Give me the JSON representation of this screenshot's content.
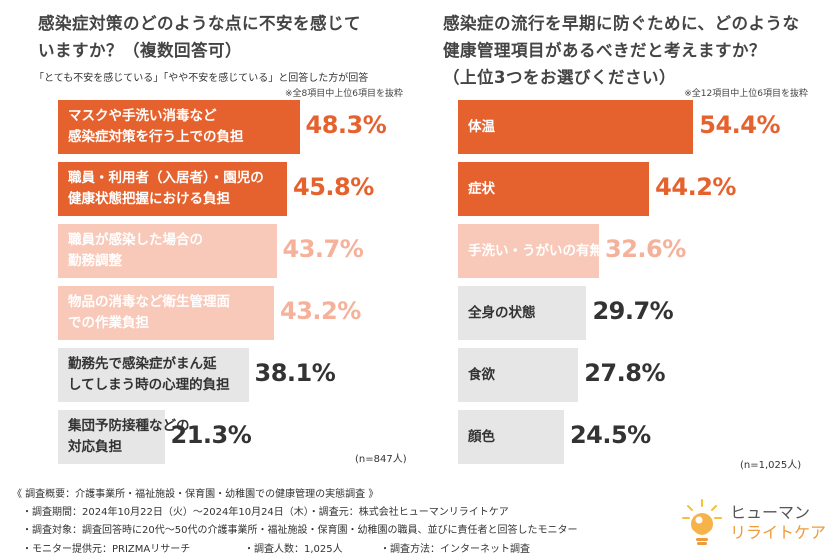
{
  "colors": {
    "dark_orange": "#e5622e",
    "light_orange": "#f5b19a",
    "pale_orange": "#f8c9b8",
    "gray": "#e6e6e6",
    "dark_text": "#333333",
    "logo_orange": "#f19a3a"
  },
  "left": {
    "title_line1": "感染症対策のどのような点に不安を感じて",
    "title_line2": "いますか？（複数回答可）",
    "subtitle": "「とても不安を感じている」「やや不安を感じている」と回答した方が回答",
    "note": "※全8項目中上位6項目を抜粋",
    "n": "(n=847人)"
  },
  "right": {
    "title_line1": "感染症の流行を早期に防ぐために、どのような",
    "title_line2": "健康管理項目があるべきだと考えますか？",
    "title_line3": "（上位3つをお選びください）",
    "note": "※全12項目中上位6項目を抜粋",
    "n": "(n=1,025人)"
  },
  "chart_data": [
    {
      "type": "bar",
      "orientation": "horizontal",
      "title": "感染症対策のどのような点に不安を感じていますか？（複数回答可）",
      "unit": "%",
      "categories": [
        "マスクや手洗い消毒など感染症対策を行う上での負担",
        "職員・利用者（入居者）・園児の健康状態把握における負担",
        "職員が感染した場合の勤務調整",
        "物品の消毒など衛生管理面での作業負担",
        "勤務先で感染症がまん延してしまう時の心理的負担",
        "集団予防接種などの対応負担"
      ],
      "label_lines": [
        [
          "マスクや手洗い消毒など",
          "感染症対策を行う上での負担"
        ],
        [
          "職員・利用者（入居者）・園児の",
          "健康状態把握における負担"
        ],
        [
          "職員が感染した場合の",
          "勤務調整"
        ],
        [
          "物品の消毒など衛生管理面",
          "での作業負担"
        ],
        [
          "勤務先で感染症がまん延",
          "してしまう時の心理的負担"
        ],
        [
          "集団予防接種などの",
          "対応負担"
        ]
      ],
      "values": [
        48.3,
        45.8,
        43.7,
        43.2,
        38.1,
        21.3
      ],
      "value_labels": [
        "48.3%",
        "45.8%",
        "43.7%",
        "43.2%",
        "38.1%",
        "21.3%"
      ],
      "color_groups": [
        "dark",
        "dark",
        "light",
        "light",
        "gray",
        "gray"
      ],
      "xlim": [
        0,
        50
      ]
    },
    {
      "type": "bar",
      "orientation": "horizontal",
      "title": "感染症の流行を早期に防ぐために、どのような健康管理項目があるべきだと考えますか？（上位3つをお選びください）",
      "unit": "%",
      "categories": [
        "体温",
        "症状",
        "手洗い・うがいの有無",
        "全身の状態",
        "食欲",
        "顔色"
      ],
      "label_lines": [
        [
          "体温"
        ],
        [
          "症状"
        ],
        [
          "手洗い・うがいの有無"
        ],
        [
          "全身の状態"
        ],
        [
          "食欲"
        ],
        [
          "顔色"
        ]
      ],
      "values": [
        54.4,
        44.2,
        32.6,
        29.7,
        27.8,
        24.5
      ],
      "value_labels": [
        "54.4%",
        "44.2%",
        "32.6%",
        "29.7%",
        "27.8%",
        "24.5%"
      ],
      "color_groups": [
        "dark",
        "dark",
        "light",
        "gray",
        "gray",
        "gray"
      ],
      "xlim": [
        0,
        57.8
      ]
    }
  ],
  "footer": {
    "line1": "《 調査概要：介護事業所・福祉施設・保育園・幼稚園での健康管理の実態調査 》",
    "line2": "・調査期間：2024年10月22日（火）～2024年10月24日（木）・調査元：株式会社ヒューマンリライトケア",
    "line3": "・調査対象：調査回答時に20代～50代の介護事業所・福祉施設・保育園・幼稚園の職員、並びに責任者と回答したモニター",
    "line4_a": "・モニター提供元：PRIZMAリサーチ",
    "line4_b": "・調査人数：1,025人",
    "line4_c": "・調査方法：インターネット調査"
  },
  "logo": {
    "line1": "ヒューマン",
    "line2": "リライトケア"
  }
}
